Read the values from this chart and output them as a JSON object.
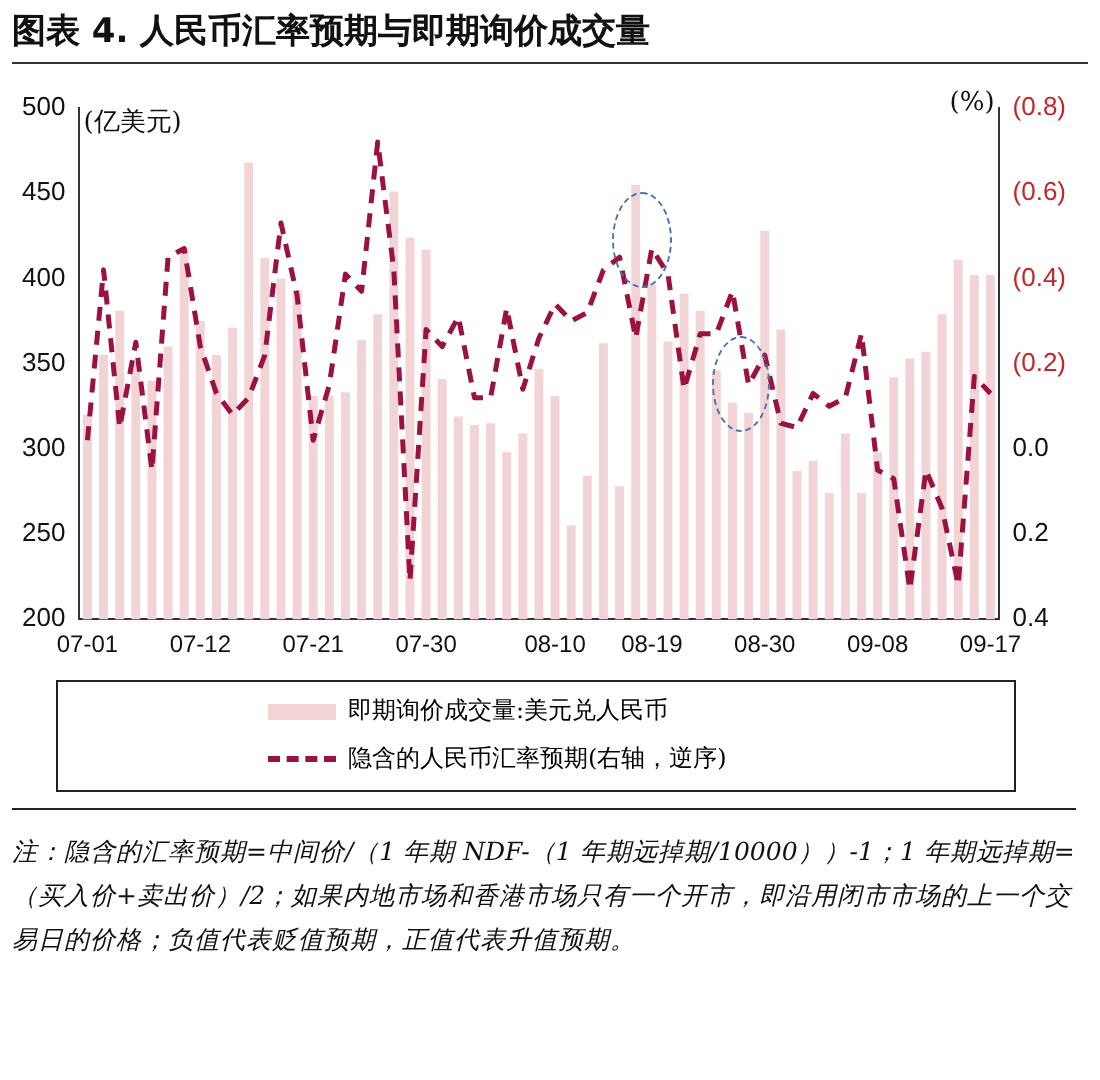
{
  "chart_data": {
    "type": "bar",
    "title": "图表 4. 人民币汇率预期与即期询价成交量",
    "ylabel": "(亿美元)",
    "y2label": "(%)",
    "categories": [
      "07-01",
      null,
      null,
      null,
      null,
      null,
      null,
      "07-12",
      null,
      null,
      null,
      null,
      null,
      null,
      "07-21",
      null,
      null,
      null,
      null,
      null,
      null,
      "07-30",
      null,
      null,
      null,
      null,
      null,
      null,
      null,
      "08-10",
      null,
      null,
      null,
      null,
      null,
      "08-19",
      null,
      null,
      null,
      null,
      null,
      null,
      "08-30",
      null,
      null,
      null,
      null,
      null,
      null,
      "09-08",
      null,
      null,
      null,
      null,
      null,
      null,
      "09-17"
    ],
    "series": [
      {
        "name": "即期询价成交量:美元兑人民币",
        "color": "#f2d3d6",
        "values": [
          320,
          355,
          381,
          350,
          340,
          360,
          418,
          375,
          355,
          371,
          468,
          412,
          400,
          393,
          331,
          331,
          333,
          364,
          379,
          451,
          424,
          417,
          341,
          319,
          314,
          315,
          298,
          309,
          347,
          331,
          255,
          284,
          362,
          278,
          455,
          397,
          363,
          391,
          381,
          346,
          327,
          321,
          428,
          370,
          287,
          293,
          274,
          309,
          274,
          298,
          342,
          353,
          357,
          379,
          411,
          402,
          402
        ]
      },
      {
        "name": "隐含的人民币汇率预期(右轴，逆序)",
        "type": "line",
        "axis": "y2",
        "color": "#9b1240",
        "line_style": "dashed",
        "marker": "none",
        "values": [
          -0.02,
          -0.42,
          -0.05,
          -0.25,
          0.05,
          -0.45,
          -0.47,
          -0.24,
          -0.13,
          -0.08,
          -0.12,
          -0.22,
          -0.53,
          -0.36,
          -0.02,
          -0.15,
          -0.41,
          -0.37,
          -0.72,
          -0.42,
          0.31,
          -0.28,
          -0.24,
          -0.31,
          -0.12,
          -0.12,
          -0.33,
          -0.14,
          -0.26,
          -0.34,
          -0.3,
          -0.32,
          -0.42,
          -0.45,
          -0.26,
          -0.47,
          -0.41,
          -0.14,
          -0.27,
          -0.27,
          -0.37,
          -0.15,
          -0.22,
          -0.06,
          -0.05,
          -0.13,
          -0.1,
          -0.12,
          -0.27,
          0.05,
          0.07,
          0.33,
          0.05,
          0.14,
          0.32,
          -0.17,
          -0.13
        ]
      }
    ],
    "ylim": [
      200,
      500
    ],
    "yticks": [
      200,
      250,
      300,
      350,
      400,
      450,
      500
    ],
    "y2lim": [
      0.4,
      -0.8
    ],
    "y2ticks": [
      {
        "value": -0.8,
        "label": "(0.8)"
      },
      {
        "value": -0.6,
        "label": "(0.6)"
      },
      {
        "value": -0.4,
        "label": "(0.4)"
      },
      {
        "value": -0.2,
        "label": "(0.2)"
      },
      {
        "value": 0,
        "label": "0.0"
      },
      {
        "value": 0.2,
        "label": "0.2"
      },
      {
        "value": 0.4,
        "label": "0.4"
      }
    ],
    "grid": false,
    "legend": "bottom",
    "annotations": [
      "注：隐含的汇率预期=中间价/（1 年期 NDF-（1 年期远掉期/10000））-1；1 年期远掉期=（买入价+卖出价）/2；如果内地市场和香港市场只有一个开市，即沿用闭市市场的上一个交易日的价格；负值代表贬值预期，正值代表升值预期。"
    ]
  }
}
